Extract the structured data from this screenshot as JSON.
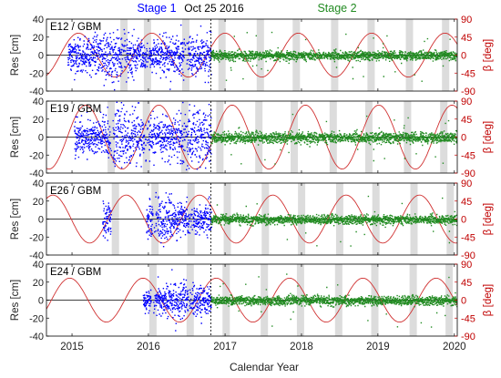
{
  "figure": {
    "stage1_label": "Stage 1",
    "stage2_label": "Stage 2",
    "event_label": "Oct 25 2016",
    "xlabel": "Calendar Year"
  },
  "chart_data": {
    "type": "scatter",
    "xlabel": "Calendar Year",
    "x_ticks": [
      "2015",
      "2016",
      "2017",
      "2018",
      "2019",
      "2020"
    ],
    "xlim": [
      "2014-09-01",
      "2020-01-15"
    ],
    "event_date": "2016-10-25",
    "event_label": "Oct 25 2016",
    "stage_labels": [
      "Stage 1",
      "Stage 2"
    ],
    "colors": {
      "stage1": "#0000ff",
      "stage2": "#228b22",
      "beta": "#d03030",
      "eclipse_band": "#dcdcdc",
      "right_axis": "#c00000"
    },
    "left_axis": {
      "label": "Res [cm]",
      "ylim": [
        -40,
        40
      ],
      "ticks": [
        "40",
        "20",
        "0",
        "-20",
        "-40"
      ]
    },
    "right_axis": {
      "label": "β [deg]",
      "ylim": [
        -90,
        90
      ],
      "ticks": [
        "90",
        "45",
        "0",
        "-45",
        "-90"
      ]
    },
    "panels": [
      {
        "title": "E12 / GBM",
        "stage1_start": "2014-12-10",
        "stage1_spread_cm": 12,
        "stage2_spread_cm": 2.5,
        "beta_amplitude_deg": 55,
        "beta_period_days": 350,
        "beta_peak_date": "2015-02-01",
        "eclipse_season_starts": [
          "2015-08-20",
          "2015-12-10",
          "2016-06-10",
          "2016-11-30",
          "2017-06-01",
          "2017-11-20",
          "2018-05-22",
          "2018-11-12",
          "2019-05-14",
          "2019-11-03"
        ]
      },
      {
        "title": "E19 / GBM",
        "stage1_start": "2015-01-10",
        "stage1_spread_cm": 14,
        "stage2_spread_cm": 3,
        "beta_amplitude_deg": 80,
        "beta_period_days": 350,
        "beta_peak_date": "2016-02-20",
        "eclipse_season_starts": [
          "2015-06-20",
          "2015-12-05",
          "2016-06-05",
          "2016-11-20",
          "2017-05-25",
          "2017-11-10",
          "2018-05-15",
          "2018-11-01",
          "2019-05-05",
          "2019-10-25"
        ]
      },
      {
        "title": "E26 / GBM",
        "stage1_start": "2015-05-25",
        "stage1_spread_cm": 10,
        "stage2_spread_cm": 2.5,
        "beta_amplitude_deg": 60,
        "beta_period_days": 350,
        "beta_peak_date": "2016-09-01",
        "eclipse_season_starts": [
          "2015-07-10",
          "2016-01-15",
          "2016-07-05",
          "2016-12-25",
          "2017-06-25",
          "2017-12-15",
          "2018-06-15",
          "2018-12-05",
          "2019-06-05",
          "2019-11-25"
        ]
      },
      {
        "title": "E24 / GBM",
        "stage1_start": "2015-12-05",
        "stage1_spread_cm": 9,
        "stage2_spread_cm": 2.5,
        "beta_amplitude_deg": 55,
        "beta_period_days": 350,
        "beta_peak_date": "2016-11-20",
        "eclipse_season_starts": [
          "2016-01-05",
          "2016-07-01",
          "2016-12-20",
          "2017-06-20",
          "2017-12-10",
          "2018-06-10",
          "2018-11-30",
          "2019-06-01",
          "2019-11-20"
        ]
      }
    ]
  }
}
